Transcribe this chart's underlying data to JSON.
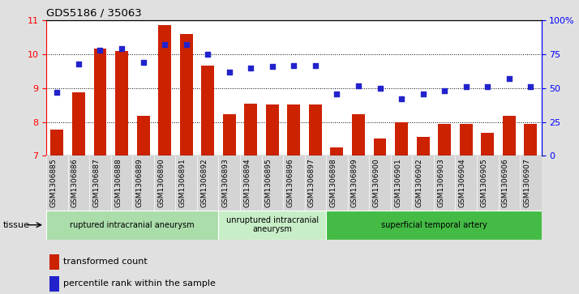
{
  "title": "GDS5186 / 35063",
  "samples": [
    "GSM1306885",
    "GSM1306886",
    "GSM1306887",
    "GSM1306888",
    "GSM1306889",
    "GSM1306890",
    "GSM1306891",
    "GSM1306892",
    "GSM1306893",
    "GSM1306894",
    "GSM1306895",
    "GSM1306896",
    "GSM1306897",
    "GSM1306898",
    "GSM1306899",
    "GSM1306900",
    "GSM1306901",
    "GSM1306902",
    "GSM1306903",
    "GSM1306904",
    "GSM1306905",
    "GSM1306906",
    "GSM1306907"
  ],
  "bar_values": [
    7.78,
    8.88,
    10.18,
    10.1,
    8.18,
    10.87,
    10.6,
    9.68,
    8.22,
    8.55,
    8.52,
    8.52,
    8.52,
    7.25,
    8.22,
    7.52,
    8.0,
    7.55,
    7.95,
    7.95,
    7.68,
    8.18,
    7.95
  ],
  "dot_values": [
    47,
    68,
    78,
    79,
    69,
    82,
    82,
    75,
    62,
    65,
    66,
    67,
    67,
    46,
    52,
    50,
    42,
    46,
    48,
    51,
    51,
    57,
    51
  ],
  "bar_color": "#cc2200",
  "dot_color": "#2222cc",
  "ylim_left": [
    7,
    11
  ],
  "ylim_right": [
    0,
    100
  ],
  "yticks_left": [
    7,
    8,
    9,
    10,
    11
  ],
  "yticks_right": [
    0,
    25,
    50,
    75,
    100
  ],
  "ytick_labels_right": [
    "0",
    "25",
    "50",
    "75",
    "100%"
  ],
  "tissue_groups": [
    {
      "label": "ruptured intracranial aneurysm",
      "start": 0,
      "end": 8,
      "color": "#aaddaa"
    },
    {
      "label": "unruptured intracranial\naneurysm",
      "start": 8,
      "end": 13,
      "color": "#c8eec8"
    },
    {
      "label": "superficial temporal artery",
      "start": 13,
      "end": 23,
      "color": "#44bb44"
    }
  ],
  "legend_bar_label": "transformed count",
  "legend_dot_label": "percentile rank within the sample",
  "tissue_label": "tissue",
  "fig_bg_color": "#e0e0e0",
  "plot_bg_color": "#ffffff",
  "xticklabel_bg": "#d4d4d4"
}
